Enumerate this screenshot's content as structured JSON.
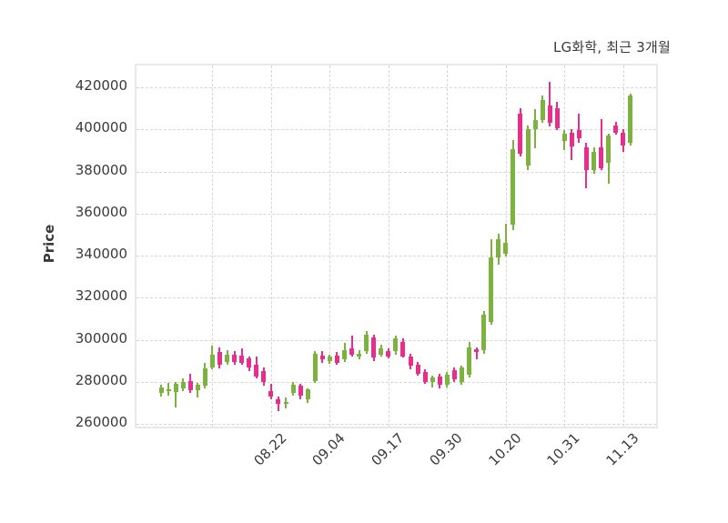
{
  "title": "LG화학, 최근 3개월",
  "y_axis": {
    "label": "Price"
  },
  "chart_data": {
    "type": "candlestick",
    "title": "LG화학, 최근 3개월",
    "ylabel": "Price",
    "ylim": [
      252000,
      428000
    ],
    "y_ticks": [
      420000,
      400000,
      380000,
      360000,
      340000,
      320000,
      300000,
      280000,
      260000
    ],
    "x_tick_labels": [
      "08.22",
      "09.04",
      "09.17",
      "09.30",
      "10.20",
      "10.31",
      "11.13"
    ],
    "x_tick_candle_indices": [
      15,
      23,
      31,
      39,
      47,
      55,
      63
    ],
    "extra_unlabeled_grid_index": 7,
    "grid": true,
    "legend": "none",
    "colors": {
      "up": "#7cb33e",
      "down": "#e82e8d",
      "grid": "#d6d6d6",
      "text": "#3a3a3a",
      "plot_border": "#e9e9e9",
      "background": "#ffffff"
    },
    "candles_format": [
      "open",
      "high",
      "low",
      "close"
    ],
    "candles": [
      [
        274500,
        278500,
        273000,
        277500
      ],
      [
        275500,
        279500,
        273500,
        276500
      ],
      [
        275000,
        280000,
        268000,
        279000
      ],
      [
        277000,
        281500,
        275500,
        280000
      ],
      [
        280500,
        284000,
        274500,
        276000
      ],
      [
        276000,
        279500,
        272500,
        278500
      ],
      [
        278000,
        289000,
        277000,
        286500
      ],
      [
        287000,
        297000,
        286000,
        293000
      ],
      [
        294000,
        296500,
        286500,
        288000
      ],
      [
        289500,
        295000,
        288000,
        293000
      ],
      [
        293000,
        294500,
        288000,
        289500
      ],
      [
        292500,
        296000,
        288000,
        289000
      ],
      [
        291000,
        292000,
        285000,
        287000
      ],
      [
        288000,
        292000,
        281500,
        282500
      ],
      [
        285000,
        287000,
        278000,
        280000
      ],
      [
        275500,
        279000,
        271500,
        273000
      ],
      [
        271500,
        273000,
        266000,
        269500
      ],
      [
        269500,
        272500,
        267500,
        270500
      ],
      [
        274500,
        280000,
        273500,
        278500
      ],
      [
        278000,
        279000,
        271500,
        273500
      ],
      [
        271500,
        277000,
        270000,
        276500
      ],
      [
        280500,
        294500,
        279500,
        293500
      ],
      [
        292500,
        294500,
        289000,
        290500
      ],
      [
        290000,
        293000,
        288500,
        292000
      ],
      [
        292500,
        294000,
        288000,
        289000
      ],
      [
        290500,
        298500,
        289500,
        295000
      ],
      [
        296000,
        302000,
        292000,
        293000
      ],
      [
        292000,
        295000,
        290500,
        293500
      ],
      [
        294500,
        304000,
        293500,
        302500
      ],
      [
        301000,
        302500,
        290000,
        291500
      ],
      [
        293000,
        297500,
        292000,
        296000
      ],
      [
        294500,
        296000,
        291000,
        292000
      ],
      [
        294500,
        302000,
        293000,
        300500
      ],
      [
        299000,
        300500,
        291500,
        292000
      ],
      [
        292000,
        293500,
        286000,
        287500
      ],
      [
        288000,
        289500,
        283000,
        284000
      ],
      [
        284500,
        286000,
        279000,
        280000
      ],
      [
        280000,
        283000,
        277500,
        282000
      ],
      [
        282500,
        284000,
        277000,
        278500
      ],
      [
        278500,
        284500,
        277500,
        283500
      ],
      [
        285500,
        287000,
        280000,
        281000
      ],
      [
        280000,
        287500,
        278500,
        287000
      ],
      [
        283500,
        299000,
        282000,
        296500
      ],
      [
        295500,
        296500,
        290500,
        294000
      ],
      [
        295000,
        313500,
        293500,
        312000
      ],
      [
        308500,
        348000,
        307000,
        339000
      ],
      [
        339000,
        350500,
        335500,
        348000
      ],
      [
        341000,
        355000,
        339500,
        346000
      ],
      [
        354500,
        395000,
        352000,
        390500
      ],
      [
        407500,
        410000,
        387000,
        388500
      ],
      [
        383000,
        402000,
        380500,
        400000
      ],
      [
        400000,
        409500,
        391000,
        404500
      ],
      [
        404500,
        416000,
        403000,
        414000
      ],
      [
        411500,
        422500,
        401500,
        403000
      ],
      [
        410000,
        413000,
        399500,
        400500
      ],
      [
        394500,
        399500,
        390000,
        398000
      ],
      [
        398500,
        400000,
        385500,
        392000
      ],
      [
        399500,
        407500,
        393500,
        396000
      ],
      [
        391500,
        393500,
        372000,
        380500
      ],
      [
        380500,
        391500,
        379000,
        389500
      ],
      [
        391500,
        405000,
        380500,
        381500
      ],
      [
        384000,
        398000,
        374000,
        397000
      ],
      [
        402000,
        403500,
        397500,
        398500
      ],
      [
        398500,
        400000,
        389500,
        392500
      ],
      [
        393500,
        417000,
        392500,
        416000
      ]
    ]
  }
}
